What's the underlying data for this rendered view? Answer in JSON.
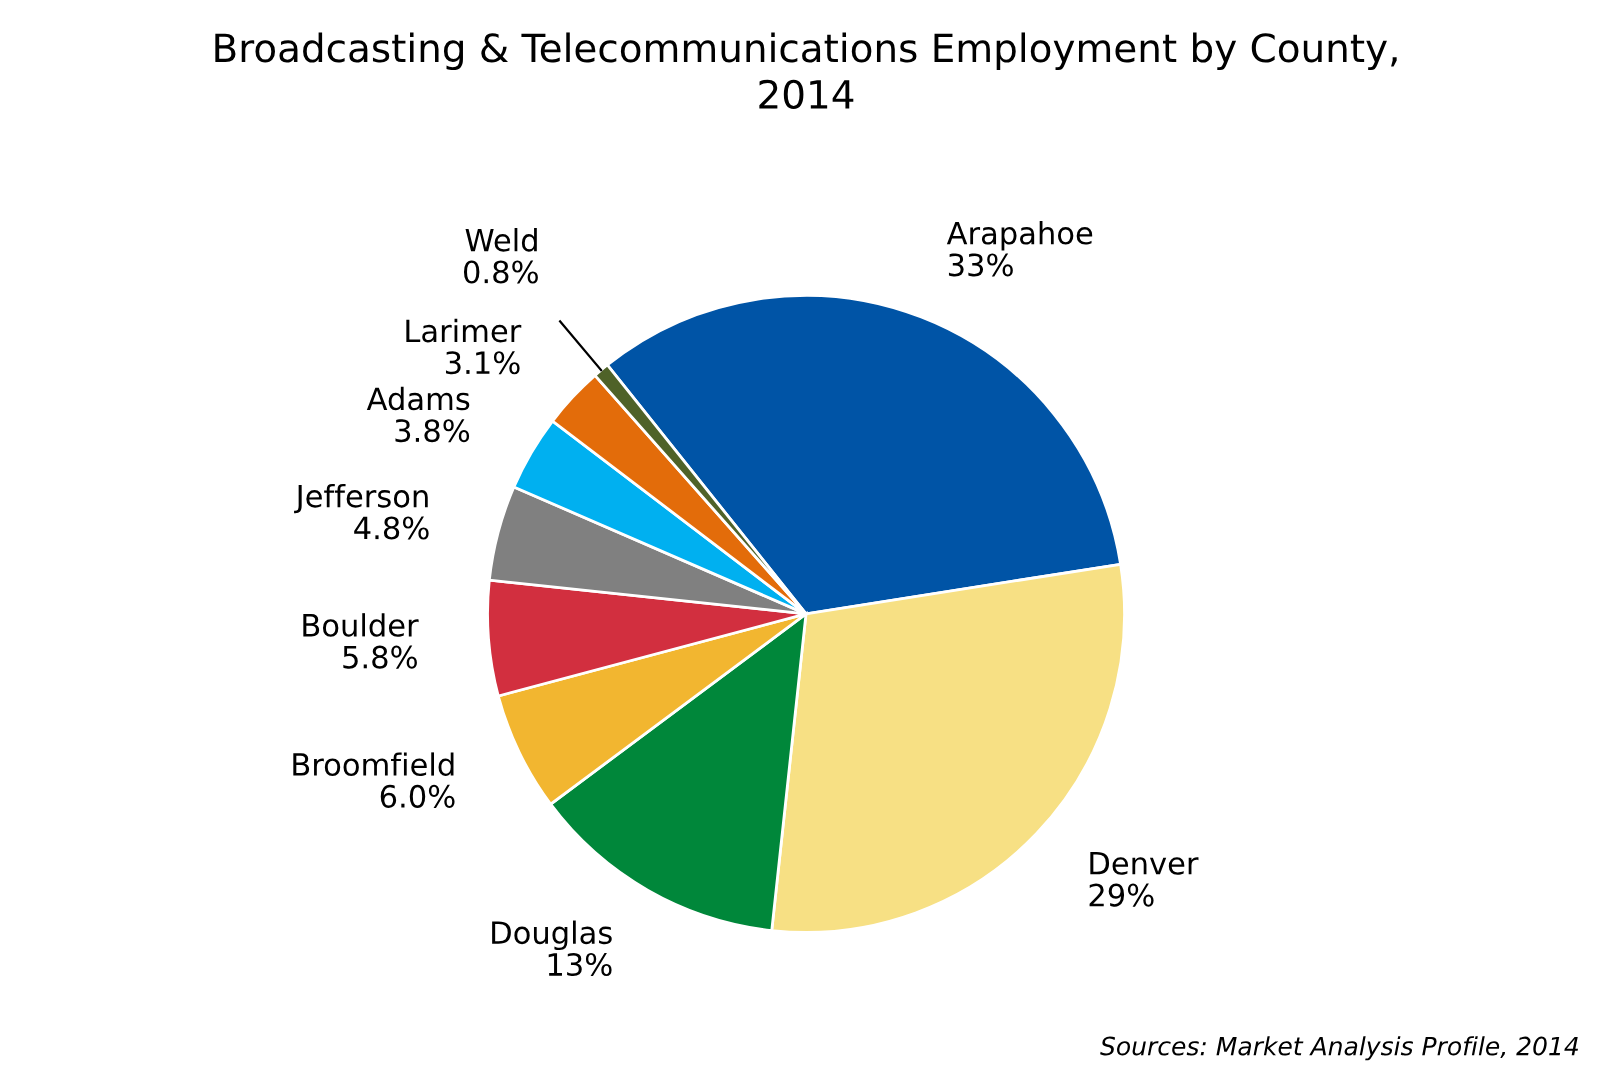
{
  "chart_data": {
    "type": "pie",
    "title": "Broadcasting & Telecommunications Employment by County,\n2014",
    "categories": [
      "Arapahoe",
      "Denver",
      "Douglas",
      "Broomfield",
      "Boulder",
      "Jefferson",
      "Adams",
      "Larimer",
      "Weld"
    ],
    "values": [
      33,
      29,
      13,
      6.0,
      5.8,
      4.8,
      3.8,
      3.1,
      0.8
    ],
    "value_labels": [
      "33%",
      "29%",
      "13%",
      "6.0%",
      "5.8%",
      "4.8%",
      "3.8%",
      "3.1%",
      "0.8%"
    ],
    "colors": [
      "#0054a6",
      "#f7e084",
      "#00873a",
      "#f2b630",
      "#d22f3f",
      "#808080",
      "#00b0f0",
      "#e36c0a",
      "#4f6228"
    ],
    "annotations": [
      "Sources: Market Analysis Profile, 2014"
    ],
    "legend": false
  }
}
